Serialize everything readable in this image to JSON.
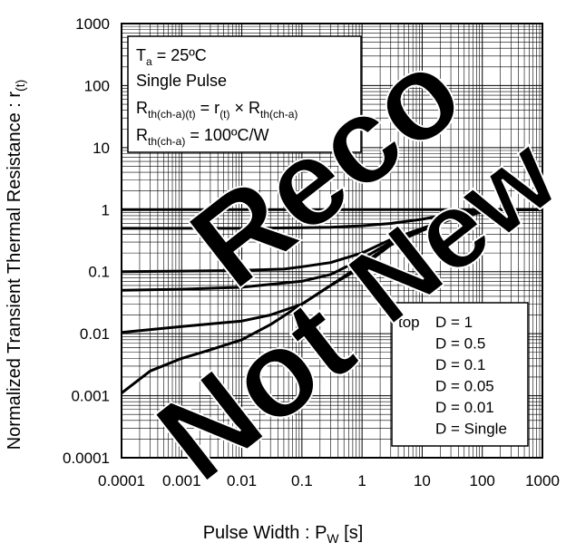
{
  "chart_data": {
    "type": "line",
    "x_scale": "log",
    "y_scale": "log",
    "xlim": [
      0.0001,
      1000
    ],
    "ylim": [
      0.0001,
      1000
    ],
    "xlabel_main": "Pulse Width : P",
    "xlabel_sub": "W",
    "xlabel_unit": " [s]",
    "ylabel_main": "Normalized Transient Thermal Resistance : r",
    "ylabel_sub": "(t)",
    "x_ticks": [
      "0.0001",
      "0.001",
      "0.01",
      "0.1",
      "1",
      "10",
      "100",
      "1000"
    ],
    "y_ticks": [
      "1000",
      "100",
      "10",
      "1",
      "0.1",
      "0.01",
      "0.001",
      "0.0001"
    ],
    "grid": true,
    "info_box": {
      "line1_main": "T",
      "line1_sub": "a",
      "line1_rest": " = 25ºC",
      "line2": "Single Pulse",
      "line3_a": "R",
      "line3_a_sub": "th(ch-a)(t)",
      "line3_b": " = r",
      "line3_b_sub": "(t)",
      "line3_c": " × R",
      "line3_c_sub": "th(ch-a)",
      "line4_a": "R",
      "line4_a_sub": "th(ch-a)",
      "line4_rest": " = 100ºC/W"
    },
    "legend_prefix": "top",
    "series": [
      {
        "name": "D = 1",
        "x": [
          0.0001,
          1000
        ],
        "y": [
          1,
          1
        ]
      },
      {
        "name": "D = 0.5",
        "x": [
          0.0001,
          0.001,
          0.01,
          0.1,
          0.3,
          1,
          3,
          10,
          30,
          100,
          200,
          1000
        ],
        "y": [
          0.5,
          0.5,
          0.5,
          0.51,
          0.52,
          0.55,
          0.6,
          0.7,
          0.85,
          0.97,
          1,
          1
        ]
      },
      {
        "name": "D = 0.1",
        "x": [
          0.0001,
          0.001,
          0.01,
          0.05,
          0.1,
          0.3,
          1,
          3,
          10,
          30,
          100,
          200,
          1000
        ],
        "y": [
          0.1,
          0.102,
          0.105,
          0.11,
          0.12,
          0.14,
          0.2,
          0.33,
          0.5,
          0.72,
          0.93,
          1,
          1
        ]
      },
      {
        "name": "D = 0.05",
        "x": [
          0.0001,
          0.001,
          0.01,
          0.1,
          0.3,
          1,
          3,
          10,
          30,
          100,
          200,
          1000
        ],
        "y": [
          0.05,
          0.052,
          0.056,
          0.07,
          0.09,
          0.16,
          0.3,
          0.48,
          0.7,
          0.92,
          1,
          1
        ]
      },
      {
        "name": "D = 0.01",
        "x": [
          0.0001,
          0.001,
          0.01,
          0.03,
          0.1,
          0.3,
          1,
          3,
          10,
          30,
          100,
          200,
          1000
        ],
        "y": [
          0.0105,
          0.013,
          0.016,
          0.02,
          0.03,
          0.06,
          0.13,
          0.28,
          0.47,
          0.7,
          0.92,
          1,
          1
        ]
      },
      {
        "name": "D = Single",
        "x": [
          0.0001,
          0.0003,
          0.001,
          0.003,
          0.01,
          0.03,
          0.1,
          0.3,
          1,
          3,
          10,
          30,
          100,
          200,
          1000
        ],
        "y": [
          0.0011,
          0.0025,
          0.004,
          0.0055,
          0.008,
          0.014,
          0.03,
          0.06,
          0.12,
          0.27,
          0.46,
          0.7,
          0.92,
          1,
          1
        ]
      }
    ]
  },
  "watermark": {
    "word1": "Not",
    "word2": "Reco",
    "word3": "New"
  }
}
